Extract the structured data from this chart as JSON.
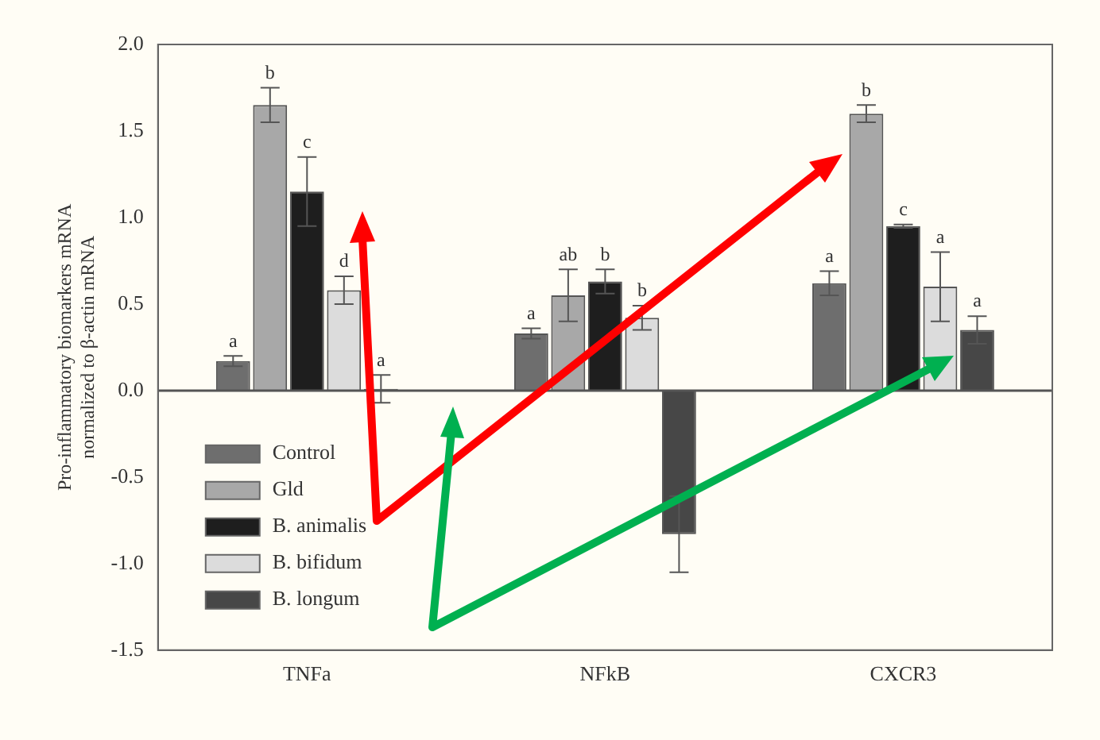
{
  "chart_data": {
    "type": "bar",
    "categories": [
      "TNFa",
      "NFkB",
      "CXCR3"
    ],
    "ylabel": "Pro-inflammatory biomarkers mRNA\nnormalized to β-actin mRNA",
    "ylim": [
      -1.5,
      2.0
    ],
    "yticks": [
      {
        "value": -1.5,
        "label": "-1.5"
      },
      {
        "value": -1.0,
        "label": "-1.0"
      },
      {
        "value": -0.5,
        "label": "-0.5"
      },
      {
        "value": 0,
        "label": "0.0"
      },
      {
        "value": 0.5,
        "label": "0.5"
      },
      {
        "value": 1.0,
        "label": "1.0"
      },
      {
        "value": 1.5,
        "label": "1.5"
      },
      {
        "value": 2.0,
        "label": "2.0"
      }
    ],
    "grid": false,
    "legend": "bottom left",
    "ref_lines": [
      {
        "axis": "y",
        "value": 0,
        "color": "#555555"
      }
    ],
    "series": [
      {
        "name": "Control",
        "color": "#6e6e6e",
        "values": [
          0.17,
          0.33,
          0.62
        ],
        "errors": [
          0.03,
          0.03,
          0.07
        ],
        "value_labels": [
          "a",
          "a",
          "a"
        ]
      },
      {
        "name": "Gld",
        "color": "#a8a8a8",
        "values": [
          1.65,
          0.55,
          1.6
        ],
        "errors": [
          0.1,
          0.15,
          0.05
        ],
        "value_labels": [
          "b",
          "ab",
          "b"
        ]
      },
      {
        "name": "B. animalis",
        "color": "#1e1e1e",
        "values": [
          1.15,
          0.63,
          0.95
        ],
        "errors": [
          0.2,
          0.07,
          0.01
        ],
        "value_labels": [
          "c",
          "b",
          "c"
        ]
      },
      {
        "name": "B. bifidum",
        "color": "#dcdcdc",
        "values": [
          0.58,
          0.42,
          0.6
        ],
        "errors": [
          0.08,
          0.07,
          0.2
        ],
        "value_labels": [
          "d",
          "b",
          "a"
        ]
      },
      {
        "name": "B. longum",
        "color": "#474747",
        "values": [
          0.01,
          -0.83,
          0.35
        ],
        "errors": [
          0.08,
          0.22,
          0.08
        ],
        "value_labels": [
          "a",
          null,
          "a"
        ]
      }
    ]
  }
}
